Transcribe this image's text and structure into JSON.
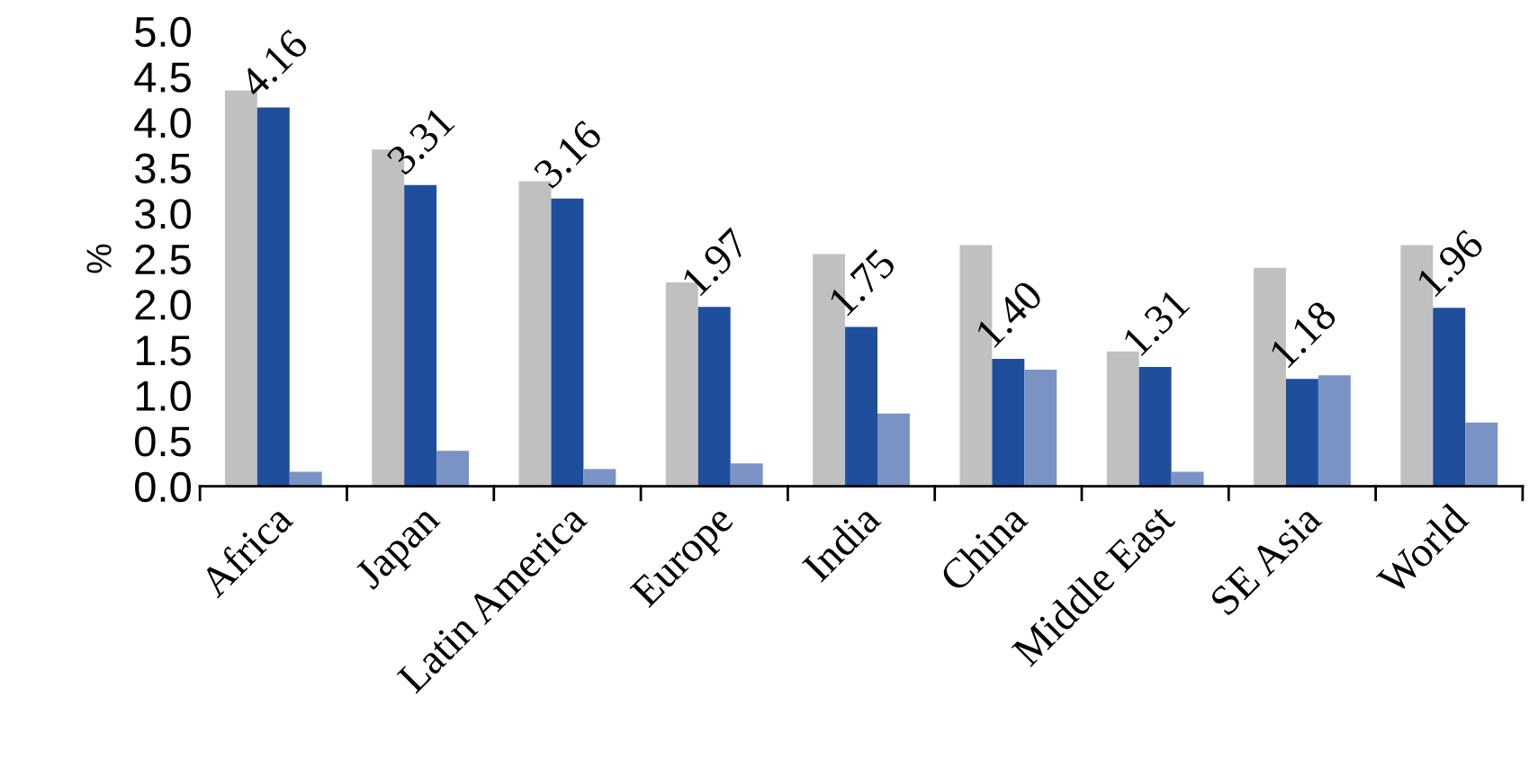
{
  "chart_data": {
    "type": "bar",
    "ylabel": "%",
    "categories": [
      "Africa",
      "Japan",
      "Latin America",
      "Europe",
      "India",
      "China",
      "Middle East",
      "SE Asia",
      "World"
    ],
    "series": [
      {
        "color": "#c0c0c0",
        "values": [
          4.35,
          3.7,
          3.35,
          2.24,
          2.55,
          2.65,
          1.48,
          2.4,
          2.65
        ]
      },
      {
        "color": "#1f4e9c",
        "values": [
          4.16,
          3.31,
          3.16,
          1.97,
          1.75,
          1.4,
          1.31,
          1.18,
          1.96
        ],
        "value_labels": [
          "4.16",
          "3.31",
          "3.16",
          "1.97",
          "1.75",
          "1.40",
          "1.31",
          "1.18",
          "1.96"
        ]
      },
      {
        "color": "#7a93c4",
        "values": [
          0.16,
          0.39,
          0.19,
          0.25,
          0.8,
          1.28,
          0.16,
          1.22,
          0.7
        ]
      }
    ],
    "ylim": [
      0,
      5.0
    ],
    "yticks": [
      {
        "value": 0,
        "label": "0.0"
      },
      {
        "value": 0.5,
        "label": "0.5"
      },
      {
        "value": 1,
        "label": "1.0"
      },
      {
        "value": 1.5,
        "label": "1.5"
      },
      {
        "value": 2,
        "label": "2.0"
      },
      {
        "value": 2.5,
        "label": "2.5"
      },
      {
        "value": 3,
        "label": "3.0"
      },
      {
        "value": 3.5,
        "label": "3.5"
      },
      {
        "value": 4,
        "label": "4.0"
      },
      {
        "value": 4.5,
        "label": "4.5"
      },
      {
        "value": 5,
        "label": "5.0"
      }
    ],
    "grid": false
  }
}
